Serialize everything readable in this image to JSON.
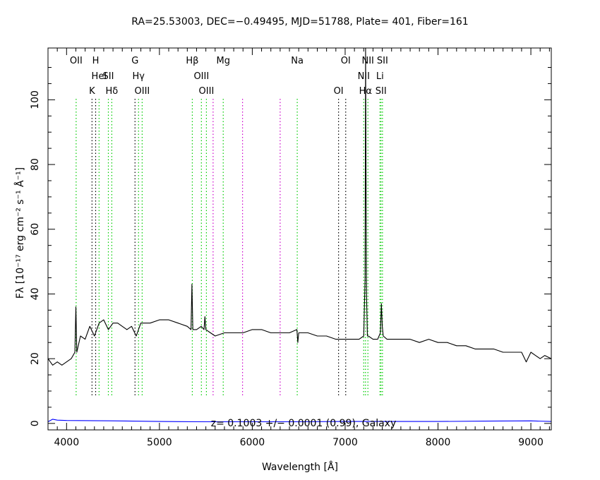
{
  "chart_data": {
    "type": "line",
    "title": "RA=25.53003, DEC=−0.49495, MJD=51788, Plate=  401, Fiber=161",
    "xlabel": "Wavelength [Å]",
    "ylabel": "Fλ [10⁻¹⁷ erg cm⁻² s⁻¹ Å⁻¹]",
    "xlim": [
      3800,
      9220
    ],
    "ylim": [
      -2,
      116
    ],
    "grid": false,
    "x_ticks": [
      4000,
      5000,
      6000,
      7000,
      8000,
      9000
    ],
    "x_tick_labels": [
      "4000",
      "5000",
      "6000",
      "7000",
      "8000",
      "9000"
    ],
    "y_ticks": [
      0,
      20,
      40,
      60,
      80,
      100
    ],
    "y_tick_labels": [
      "0",
      "20",
      "40",
      "60",
      "80",
      "100"
    ],
    "annotation": "z= 0.1003 +/− 0.0001 (0.99), Galaxy",
    "series": [
      {
        "role": "spectrum",
        "color": "#000000",
        "x": [
          3800,
          3850,
          3900,
          3950,
          4000,
          4050,
          4090,
          4100,
          4110,
          4150,
          4200,
          4250,
          4300,
          4350,
          4400,
          4450,
          4500,
          4550,
          4600,
          4650,
          4700,
          4750,
          4800,
          4900,
          5000,
          5100,
          5200,
          5300,
          5340,
          5350,
          5360,
          5400,
          5450,
          5480,
          5490,
          5500,
          5550,
          5600,
          5700,
          5800,
          5900,
          6000,
          6100,
          6200,
          6300,
          6400,
          6480,
          6490,
          6500,
          6600,
          6700,
          6800,
          6900,
          7000,
          7100,
          7150,
          7200,
          7215,
          7220,
          7225,
          7230,
          7240,
          7250,
          7300,
          7350,
          7380,
          7390,
          7400,
          7410,
          7450,
          7500,
          7600,
          7700,
          7800,
          7900,
          8000,
          8100,
          8200,
          8300,
          8400,
          8500,
          8600,
          8700,
          8800,
          8900,
          8950,
          9000,
          9050,
          9100,
          9150,
          9220
        ],
        "y": [
          20,
          18,
          19,
          18,
          19,
          20,
          22,
          36,
          22,
          27,
          26,
          30,
          27,
          31,
          32,
          29,
          31,
          31,
          30,
          29,
          30,
          27,
          31,
          31,
          32,
          32,
          31,
          30,
          29,
          43,
          29,
          29,
          30,
          29,
          33,
          29,
          28,
          27,
          28,
          28,
          28,
          29,
          29,
          28,
          28,
          28,
          29,
          25,
          28,
          28,
          27,
          27,
          26,
          26,
          26,
          26,
          27,
          45,
          116,
          72,
          40,
          27,
          27,
          26,
          26,
          28,
          37,
          30,
          27,
          26,
          26,
          26,
          26,
          25,
          26,
          25,
          25,
          24,
          24,
          23,
          23,
          23,
          22,
          22,
          22,
          19,
          22,
          21,
          20,
          21,
          20
        ]
      },
      {
        "role": "error",
        "color": "#0000ff",
        "x": [
          3800,
          3850,
          3900,
          4000,
          4500,
          5000,
          5500,
          6000,
          6500,
          7000,
          7500,
          8000,
          8500,
          9000,
          9220
        ],
        "y": [
          0.5,
          1.3,
          1.0,
          0.9,
          0.8,
          0.6,
          0.5,
          0.5,
          0.5,
          0.6,
          0.6,
          0.6,
          0.7,
          0.8,
          0.6
        ]
      }
    ],
    "lines": [
      {
        "x": 4103,
        "label": "OII",
        "row": 0,
        "color": "#00cc00",
        "dot_color": "#00aa00"
      },
      {
        "x": 4274,
        "label": "K",
        "row": 2,
        "color": "#000000"
      },
      {
        "x": 4313,
        "label": "H",
        "row": 0,
        "color": "#000000"
      },
      {
        "x": 4350,
        "label": "HeI",
        "row": 1,
        "color": "#00cc00"
      },
      {
        "x": 4450,
        "label": "SII",
        "row": 1,
        "color": "#00cc00"
      },
      {
        "x": 4487,
        "label": "Hδ",
        "row": 2,
        "color": "#00cc00"
      },
      {
        "x": 4737,
        "label": "G",
        "row": 0,
        "color": "#000000"
      },
      {
        "x": 4775,
        "label": "Hγ",
        "row": 1,
        "color": "#00cc00"
      },
      {
        "x": 4814,
        "label": "OIII",
        "row": 2,
        "color": "#00cc00"
      },
      {
        "x": 5354,
        "label": "Hβ",
        "row": 0,
        "color": "#00cc00"
      },
      {
        "x": 5452,
        "label": "OIII",
        "row": 1,
        "color": "#00cc00"
      },
      {
        "x": 5506,
        "label": "OIII",
        "row": 2,
        "color": "#00cc00"
      },
      {
        "x": 5578,
        "label": "",
        "row": 0,
        "color": "#cc00cc"
      },
      {
        "x": 5687,
        "label": "Mg",
        "row": 0,
        "color": "#00cc00"
      },
      {
        "x": 5895,
        "label": "",
        "row": 0,
        "color": "#cc00cc"
      },
      {
        "x": 6300,
        "label": "",
        "row": 0,
        "color": "#cc00cc"
      },
      {
        "x": 6484,
        "label": "Na",
        "row": 0,
        "color": "#00cc00"
      },
      {
        "x": 6929,
        "label": "OI",
        "row": 2,
        "color": "#000000"
      },
      {
        "x": 7006,
        "label": "OI",
        "row": 0,
        "color": "#000000"
      },
      {
        "x": 7200,
        "label": "NII",
        "row": 1,
        "color": "#00cc00"
      },
      {
        "x": 7219,
        "label": "Hα",
        "row": 2,
        "color": "#00cc00"
      },
      {
        "x": 7245,
        "label": "NII",
        "row": 0,
        "color": "#00cc00"
      },
      {
        "x": 7375,
        "label": "Li",
        "row": 1,
        "color": "#00cc00"
      },
      {
        "x": 7386,
        "label": "SII",
        "row": 2,
        "color": "#00cc00"
      },
      {
        "x": 7402,
        "label": "SII",
        "row": 0,
        "color": "#00cc00"
      }
    ]
  }
}
